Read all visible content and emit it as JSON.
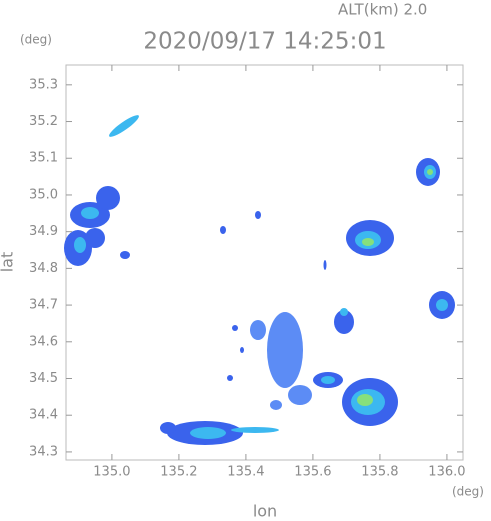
{
  "header": {
    "altitude": "ALT(km)  2.0",
    "timestamp": "2020/09/17 14:25:01"
  },
  "map": {
    "x_label": "lon",
    "y_label": "lat",
    "x_unit": "(deg)",
    "y_unit": "(deg)",
    "xlim": [
      134.863,
      136.048
    ],
    "ylim": [
      34.278,
      35.354
    ],
    "xticks": [
      {
        "value": 135,
        "label": "135.0"
      },
      {
        "value": 135.2,
        "label": "135.2"
      },
      {
        "value": 135.4,
        "label": "135.4"
      },
      {
        "value": 135.6,
        "label": "135.6"
      },
      {
        "value": 135.8,
        "label": "135.8"
      },
      {
        "value": 136,
        "label": "136.0"
      }
    ],
    "yticks": [
      {
        "value": 34.3,
        "label": "34.3"
      },
      {
        "value": 34.4,
        "label": "34.4"
      },
      {
        "value": 34.5,
        "label": "34.5"
      },
      {
        "value": 34.6,
        "label": "34.6"
      },
      {
        "value": 34.7,
        "label": "34.7"
      },
      {
        "value": 34.8,
        "label": "34.8"
      },
      {
        "value": 34.9,
        "label": "34.9"
      },
      {
        "value": 35,
        "label": "35.0"
      },
      {
        "value": 35.1,
        "label": "35.1"
      },
      {
        "value": 35.2,
        "label": "35.2"
      },
      {
        "value": 35.3,
        "label": "35.3"
      }
    ]
  }
}
